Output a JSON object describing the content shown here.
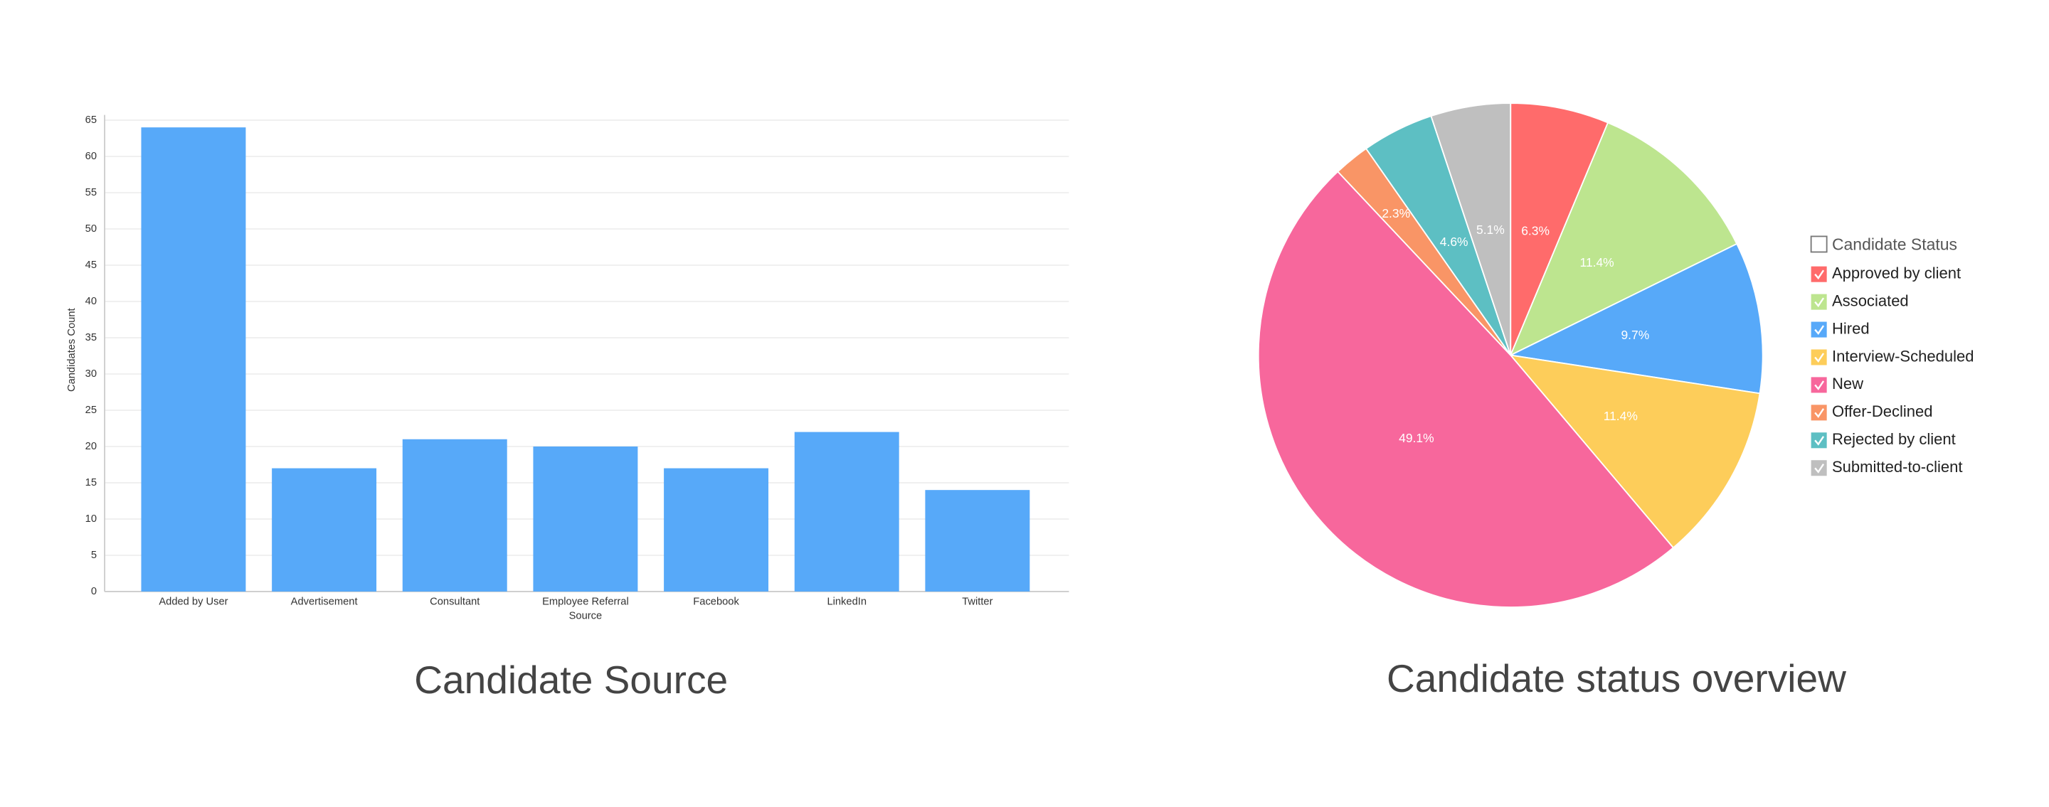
{
  "chart_data": [
    {
      "type": "bar",
      "title": "Candidate Source",
      "x_label": "Source",
      "y_label": "Candidates Count",
      "categories": [
        "Added by User",
        "Advertisement",
        "Consultant",
        "Employee Referral",
        "Facebook",
        "LinkedIn",
        "Twitter"
      ],
      "values": [
        64,
        17,
        21,
        20,
        17,
        22,
        14
      ],
      "color": "#57a9f9",
      "ylim": [
        0,
        65
      ],
      "yticks": [
        0,
        5,
        10,
        15,
        20,
        25,
        30,
        35,
        40,
        45,
        50,
        55,
        60,
        65
      ],
      "grid": true
    },
    {
      "type": "pie",
      "title": "Candidate status overview",
      "legend_title": "Candidate Status",
      "legend": "right",
      "categories": [
        "Approved by client",
        "Associated",
        "Hired",
        "Interview-Scheduled",
        "New",
        "Offer-Declined",
        "Rejected by client",
        "Submitted-to-client"
      ],
      "values": [
        6.3,
        11.4,
        9.7,
        11.4,
        49.1,
        2.3,
        4.6,
        5.1
      ],
      "value_labels": [
        "6.3%",
        "11.4%",
        "9.7%",
        "11.4%",
        "49.1%",
        "2.3%",
        "4.6%",
        "5.1%"
      ],
      "colors": [
        "#ff6b6b",
        "#bde58f",
        "#57a9f9",
        "#fdcd5a",
        "#f7679c",
        "#f99566",
        "#5dbfc3",
        "#bfbfbf"
      ]
    }
  ]
}
